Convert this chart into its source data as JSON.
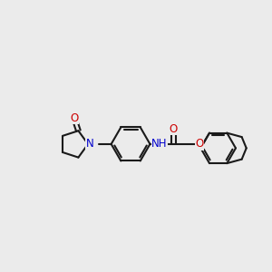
{
  "bg_color": "#ebebeb",
  "bond_color": "#1a1a1a",
  "N_color": "#0000cc",
  "O_color": "#cc0000",
  "line_width": 1.5,
  "font_size": 8.5,
  "fig_size": [
    3.0,
    3.0
  ],
  "dpi": 100,
  "xlim": [
    0.0,
    10.0
  ],
  "ylim": [
    2.5,
    8.5
  ]
}
